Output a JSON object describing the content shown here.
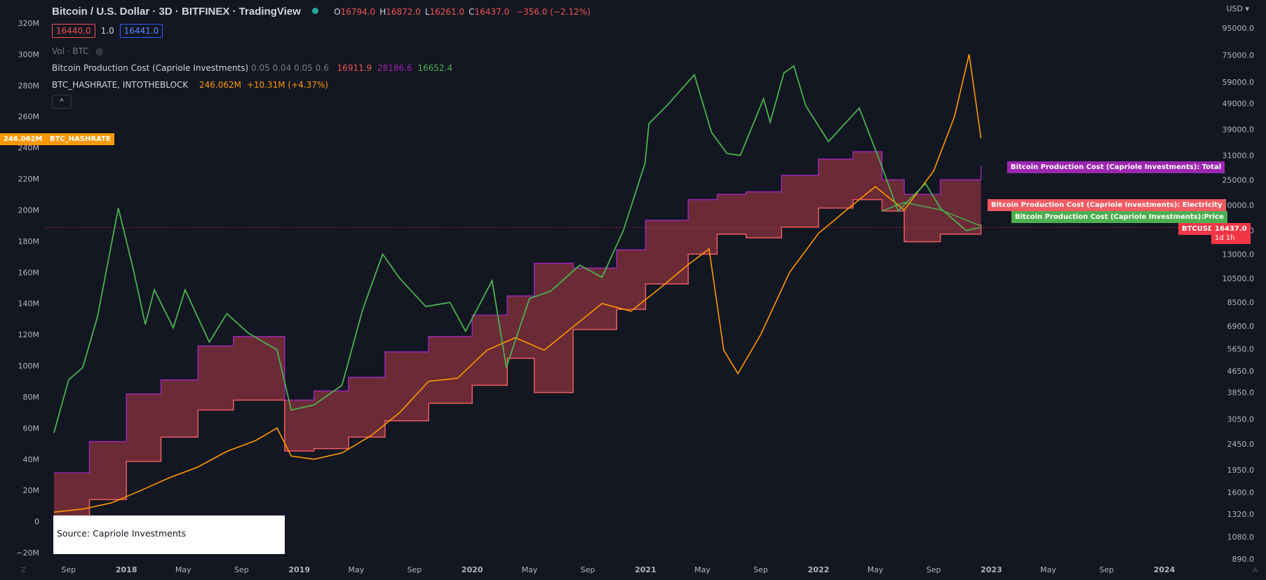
{
  "header": {
    "title": "Bitcoin / U.S. Dollar · 3D · BITFINEX · TradingView",
    "ohlc": [
      {
        "label": "O",
        "value": "16794.0"
      },
      {
        "label": "H",
        "value": "16872.0"
      },
      {
        "label": "L",
        "value": "16261.0"
      },
      {
        "label": "C",
        "value": "16437.0"
      }
    ],
    "change": "−356.0 (−2.12%)",
    "sell_price": "16440.0",
    "spread": "1.0",
    "buy_price": "16441.0",
    "volume_label": "Vol · BTC"
  },
  "indicators": [
    {
      "name": "Bitcoin Production Cost (Capriole Investments)",
      "params": "0.05 0.04 0.05 0.6",
      "values": [
        "16911.9",
        "28186.6",
        "16652.4"
      ],
      "colors": [
        "#ef5350",
        "#9c27b0",
        "#4caf50"
      ]
    },
    {
      "name": "BTC_HASHRATE, INTOTHEBLOCK",
      "values": [
        "246.062M",
        "+10.31M (+4.37%)"
      ],
      "colors": [
        "#ff9800",
        "#ff9800"
      ]
    }
  ],
  "colors": {
    "background": "#131722",
    "price_line": "#4caf50",
    "hashrate_line": "#ff9800",
    "total_cost_line": "#9c27b0",
    "electricity_cost_line": "#f05a61",
    "band_fill": "#7a2f3a",
    "current_price": "#f23645"
  },
  "chart_data": {
    "type": "line",
    "title": "Bitcoin / U.S. Dollar · 3D · BITFINEX · TradingView",
    "left_axis": {
      "ticks": [
        "320M",
        "300M",
        "280M",
        "260M",
        "240M",
        "220M",
        "200M",
        "180M",
        "160M",
        "140M",
        "120M",
        "100M",
        "80M",
        "60M",
        "40M",
        "20M",
        "0",
        "−20M"
      ],
      "range": [
        -20000000,
        320000000
      ]
    },
    "right_axis": {
      "currency": "USD",
      "scale": "log",
      "ticks": [
        "95000.0",
        "75000.0",
        "59000.0",
        "49000.0",
        "39000.0",
        "31000.0",
        "25000.0",
        "20000.0",
        "16000.0",
        "13000.0",
        "10500.0",
        "8500.0",
        "6900.0",
        "5650.0",
        "4650.0",
        "3850.0",
        "3050.0",
        "2450.0",
        "1950.0",
        "1600.0",
        "1320.0",
        "1080.0",
        "890.0"
      ]
    },
    "x_axis": {
      "ticks": [
        "Sep",
        "2018",
        "May",
        "Sep",
        "2019",
        "May",
        "Sep",
        "2020",
        "May",
        "Sep",
        "2021",
        "May",
        "Sep",
        "2022",
        "May",
        "Sep",
        "2023",
        "May",
        "Sep",
        "2024"
      ],
      "bold_ticks": [
        "2018",
        "2019",
        "2020",
        "2021",
        "2022",
        "2023",
        "2024"
      ]
    },
    "series": [
      {
        "name": "BTCUSD",
        "axis": "right",
        "x": [
          "2017-08-01",
          "2017-09-01",
          "2017-10-01",
          "2017-11-01",
          "2017-12-15",
          "2018-01-15",
          "2018-02-10",
          "2018-03-01",
          "2018-04-10",
          "2018-05-05",
          "2018-06-25",
          "2018-08-01",
          "2018-09-15",
          "2018-11-15",
          "2018-12-15",
          "2019-02-01",
          "2019-04-01",
          "2019-05-15",
          "2019-06-26",
          "2019-08-01",
          "2019-09-25",
          "2019-11-15",
          "2019-12-18",
          "2020-02-12",
          "2020-03-13",
          "2020-05-01",
          "2020-06-15",
          "2020-08-15",
          "2020-10-01",
          "2020-11-15",
          "2020-12-31",
          "2021-01-08",
          "2021-02-15",
          "2021-04-14",
          "2021-05-20",
          "2021-06-22",
          "2021-07-20",
          "2021-09-07",
          "2021-09-21",
          "2021-10-20",
          "2021-11-10",
          "2021-12-05",
          "2022-01-22",
          "2022-03-28",
          "2022-05-12",
          "2022-06-18",
          "2022-08-15",
          "2022-09-15",
          "2022-11-09",
          "2022-12-10"
        ],
        "y": [
          2700,
          4300,
          4800,
          7500,
          19500,
          11500,
          7000,
          9500,
          6800,
          9500,
          6000,
          7700,
          6500,
          5600,
          3300,
          3450,
          4100,
          8000,
          13000,
          10500,
          8200,
          8500,
          6600,
          10300,
          4800,
          8800,
          9400,
          11800,
          10600,
          16000,
          29000,
          41000,
          48000,
          63000,
          38000,
          31500,
          31000,
          51000,
          41500,
          64000,
          68000,
          48000,
          35000,
          47000,
          29000,
          19000,
          24200,
          19500,
          16000,
          16437
        ]
      },
      {
        "name": "Bitcoin Production Cost (Capriole Investments): Total",
        "axis": "right",
        "x": [
          "2017-08-01",
          "2017-10-15",
          "2018-01-01",
          "2018-03-15",
          "2018-06-01",
          "2018-08-15",
          "2018-11-15",
          "2018-12-01",
          "2019-02-01",
          "2019-04-15",
          "2019-07-01",
          "2019-10-01",
          "2020-01-01",
          "2020-03-15",
          "2020-05-11",
          "2020-08-01",
          "2020-11-01",
          "2021-01-01",
          "2021-04-01",
          "2021-06-01",
          "2021-08-01",
          "2021-10-15",
          "2022-01-01",
          "2022-03-15",
          "2022-05-15",
          "2022-07-01",
          "2022-09-15",
          "2022-12-10"
        ],
        "y": [
          1900,
          2500,
          3800,
          4300,
          5800,
          6300,
          6300,
          3600,
          3900,
          4400,
          5500,
          6300,
          7600,
          9000,
          12000,
          11500,
          13500,
          17500,
          21000,
          22000,
          22500,
          26000,
          30000,
          32000,
          25000,
          22000,
          25000,
          28186.6
        ]
      },
      {
        "name": "Bitcoin Production Cost (Capriole Investments): Electricity",
        "axis": "right",
        "x": [
          "2017-08-01",
          "2017-10-15",
          "2018-01-01",
          "2018-03-15",
          "2018-06-01",
          "2018-08-15",
          "2018-11-15",
          "2018-12-01",
          "2019-02-01",
          "2019-04-15",
          "2019-07-01",
          "2019-10-01",
          "2020-01-01",
          "2020-03-15",
          "2020-05-11",
          "2020-08-01",
          "2020-11-01",
          "2021-01-01",
          "2021-04-01",
          "2021-06-01",
          "2021-08-01",
          "2021-10-15",
          "2022-01-01",
          "2022-03-15",
          "2022-05-15",
          "2022-07-01",
          "2022-09-15",
          "2022-12-10"
        ],
        "y": [
          1280,
          1500,
          2100,
          2600,
          3300,
          3600,
          3600,
          2300,
          2350,
          2600,
          3000,
          3500,
          4100,
          5200,
          3850,
          6700,
          8000,
          10000,
          13000,
          15500,
          15000,
          16500,
          19500,
          21000,
          19000,
          14500,
          15500,
          16911.9
        ]
      },
      {
        "name": "Bitcoin Production Cost (Capriole Investments):Price",
        "axis": "right",
        "x": [
          "2022-05-15",
          "2022-07-01",
          "2022-09-15",
          "2022-12-10"
        ],
        "y": [
          19000,
          20500,
          19200,
          16652.4
        ]
      },
      {
        "name": "BTC_HASHRATE",
        "axis": "left",
        "x": [
          "2017-08-01",
          "2017-10-01",
          "2017-12-01",
          "2018-02-01",
          "2018-04-01",
          "2018-06-01",
          "2018-08-01",
          "2018-10-01",
          "2018-11-15",
          "2018-12-15",
          "2019-02-01",
          "2019-04-01",
          "2019-06-01",
          "2019-08-01",
          "2019-10-01",
          "2019-12-01",
          "2020-02-01",
          "2020-04-01",
          "2020-06-01",
          "2020-08-01",
          "2020-10-01",
          "2020-12-01",
          "2021-02-01",
          "2021-04-01",
          "2021-05-15",
          "2021-06-15",
          "2021-07-15",
          "2021-09-01",
          "2021-11-01",
          "2022-01-01",
          "2022-03-01",
          "2022-05-01",
          "2022-07-01",
          "2022-09-01",
          "2022-10-15",
          "2022-11-15",
          "2022-12-10"
        ],
        "y": [
          6000000,
          8000000,
          12000000,
          20000000,
          28000000,
          35000000,
          45000000,
          52000000,
          60000000,
          42000000,
          40000000,
          44000000,
          55000000,
          70000000,
          90000000,
          92000000,
          110000000,
          118000000,
          110000000,
          125000000,
          140000000,
          135000000,
          150000000,
          165000000,
          175000000,
          110000000,
          95000000,
          120000000,
          160000000,
          185000000,
          200000000,
          215000000,
          200000000,
          225000000,
          260000000,
          300000000,
          246062000
        ]
      }
    ],
    "last_values": {
      "hashrate": "246.062M",
      "price": "16437.0",
      "price_countdown": "1d 1h"
    },
    "series_labels": {
      "hashrate": "BTC_HASHRATE",
      "total": "Bitcoin Production Cost (Capriole Investments): Total",
      "electricity": "Bitcoin Production Cost (Capriole Investments): Electricity",
      "price_cost": "Bitcoin Production Cost (Capriole Investments):Price",
      "btcusd": "BTCUSD"
    },
    "annotation": "Source: Capriole Investments",
    "grid": false,
    "legend": "top-left"
  }
}
